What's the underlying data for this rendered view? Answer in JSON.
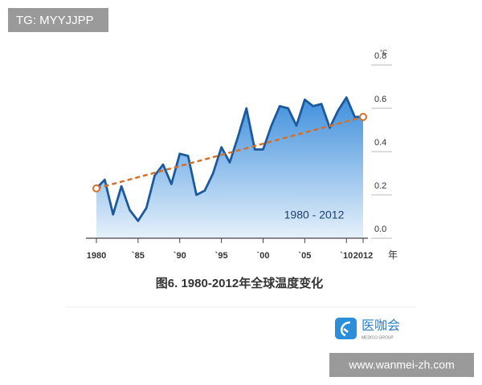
{
  "chart_data": {
    "type": "line",
    "area": true,
    "x": [
      1980,
      1981,
      1982,
      1983,
      1984,
      1985,
      1986,
      1987,
      1988,
      1989,
      1990,
      1991,
      1992,
      1993,
      1994,
      1995,
      1996,
      1997,
      1998,
      1999,
      2000,
      2001,
      2002,
      2003,
      2004,
      2005,
      2006,
      2007,
      2008,
      2009,
      2010,
      2011,
      2012
    ],
    "series": [
      {
        "color": "#1b5a9c",
        "values": [
          0.23,
          0.27,
          0.11,
          0.24,
          0.13,
          0.08,
          0.14,
          0.29,
          0.34,
          0.25,
          0.39,
          0.38,
          0.2,
          0.22,
          0.3,
          0.42,
          0.35,
          0.47,
          0.6,
          0.41,
          0.41,
          0.52,
          0.61,
          0.6,
          0.52,
          0.64,
          0.61,
          0.62,
          0.51,
          0.59,
          0.65,
          0.56,
          0.56
        ]
      }
    ],
    "trend": {
      "x": [
        1980,
        2012
      ],
      "values": [
        0.23,
        0.56
      ],
      "color": "#d4702a"
    },
    "xlim": [
      1980,
      2012
    ],
    "xticks": [
      {
        "value": 1980,
        "label": "1980"
      },
      {
        "value": 1985,
        "label": "`85"
      },
      {
        "value": 1990,
        "label": "`90"
      },
      {
        "value": 1995,
        "label": "`95"
      },
      {
        "value": 2000,
        "label": "`00"
      },
      {
        "value": 2005,
        "label": "`05"
      },
      {
        "value": 2010,
        "label": "`10"
      },
      {
        "value": 2012,
        "label": "2012"
      }
    ],
    "xlabel": "年",
    "ylim": [
      0,
      0.8
    ],
    "yticks": [
      {
        "value": 0,
        "label": "0.0"
      },
      0.2,
      0.4,
      0.6,
      0.8
    ],
    "yunit": "°C",
    "annotation": "1980 - 2012",
    "caption": "图6. 1980-2012年全球温度变化"
  },
  "watermark_top": "TG: MYYJJPP",
  "watermark_bottom": "www.wanmei-zh.com",
  "logo": {
    "name": "医咖会",
    "subtitle": "MEDICO GROUP"
  }
}
